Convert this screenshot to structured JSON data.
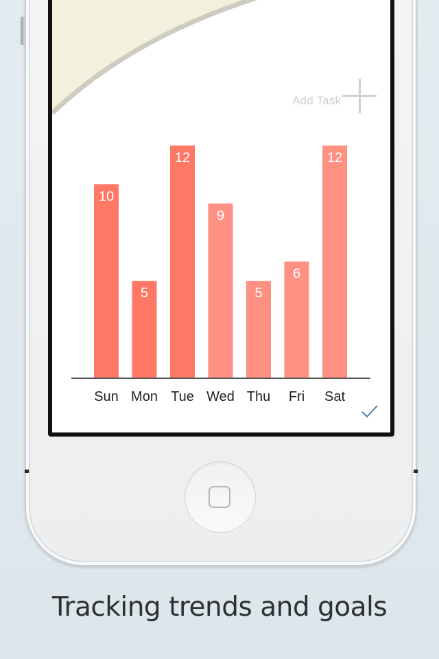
{
  "screen": {
    "add_task_label": "Add Task",
    "add_icon": "plus-icon",
    "done_icon": "checkmark-icon"
  },
  "chart_data": {
    "type": "bar",
    "categories": [
      "Sun",
      "Mon",
      "Tue",
      "Wed",
      "Thu",
      "Fri",
      "Sat"
    ],
    "values": [
      10,
      5,
      12,
      9,
      5,
      6,
      12
    ],
    "colors": [
      "#ff7866",
      "#ff7866",
      "#ff7866",
      "#ff9183",
      "#ff9183",
      "#ff9183",
      "#ff9183"
    ],
    "ylim": [
      0,
      12
    ],
    "grid": false
  },
  "colors": {
    "blob_fill": "#f3f0de",
    "blob_stroke": "#cecbc0",
    "axis": "#555555",
    "check": "#4a7fa8"
  },
  "caption": "Tracking trends and goals"
}
